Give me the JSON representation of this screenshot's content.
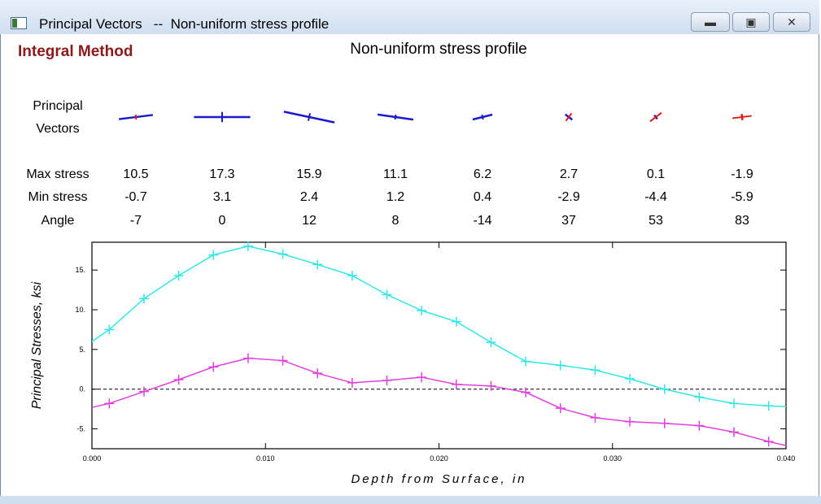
{
  "window": {
    "title": "Principal Vectors",
    "subtitle": "--  Non-uniform stress profile"
  },
  "header": {
    "method": "Integral Method",
    "chart_title": "Non-uniform stress profile"
  },
  "table": {
    "row_labels": {
      "vectors_line1": "Principal",
      "vectors_line2": "Vectors",
      "max": "Max stress",
      "min": "Min stress",
      "angle": "Angle"
    },
    "columns": [
      {
        "max": "10.5",
        "min": "-0.7",
        "angle": "-7"
      },
      {
        "max": "17.3",
        "min": "3.1",
        "angle": "0"
      },
      {
        "max": "15.9",
        "min": "2.4",
        "angle": "12"
      },
      {
        "max": "11.1",
        "min": "1.2",
        "angle": "8"
      },
      {
        "max": "6.2",
        "min": "0.4",
        "angle": "-14"
      },
      {
        "max": "2.7",
        "min": "-2.9",
        "angle": "37"
      },
      {
        "max": "0.1",
        "min": "-4.4",
        "angle": "53"
      },
      {
        "max": "-1.9",
        "min": "-5.9",
        "angle": "83"
      }
    ]
  },
  "colors": {
    "max_series": "#33e6e6",
    "min_series": "#e040e0",
    "vector_positive": "#1a1acc",
    "vector_negative": "#e01a1a",
    "method_label": "#8b1a1a"
  },
  "chart_data": {
    "type": "line",
    "xlabel": "Depth from Surface,  in",
    "ylabel": "Principal Stresses, ksi",
    "xlim": [
      0,
      0.04
    ],
    "ylim": [
      -7.5,
      18.5
    ],
    "xticks": [
      0,
      0.01,
      0.02,
      0.03,
      0.04
    ],
    "xtick_labels": [
      "0.000",
      "0.010",
      "0.020",
      "0.030",
      "0.040"
    ],
    "yticks": [
      -5,
      0,
      5,
      10,
      15
    ],
    "ytick_labels": [
      "-5.",
      "0.",
      "5.",
      "10.",
      "15."
    ],
    "zero_line": true,
    "series": [
      {
        "role": "max",
        "x": [
          0,
          0.001,
          0.003,
          0.005,
          0.007,
          0.009,
          0.011,
          0.013,
          0.015,
          0.017,
          0.019,
          0.021,
          0.023,
          0.025,
          0.027,
          0.029,
          0.031,
          0.033,
          0.035,
          0.037,
          0.039,
          0.04
        ],
        "y": [
          6.0,
          7.5,
          11.4,
          14.3,
          16.9,
          18.0,
          17.0,
          15.7,
          14.3,
          11.9,
          9.9,
          8.5,
          5.9,
          3.5,
          3.0,
          2.4,
          1.3,
          0.0,
          -1.0,
          -1.8,
          -2.1,
          -2.2
        ],
        "markers": [
          false,
          true,
          true,
          true,
          true,
          true,
          true,
          true,
          true,
          true,
          true,
          true,
          true,
          true,
          true,
          true,
          true,
          true,
          true,
          true,
          true,
          false
        ]
      },
      {
        "role": "min",
        "x": [
          0,
          0.001,
          0.003,
          0.005,
          0.007,
          0.009,
          0.011,
          0.013,
          0.015,
          0.017,
          0.019,
          0.021,
          0.023,
          0.025,
          0.027,
          0.029,
          0.031,
          0.033,
          0.035,
          0.037,
          0.039,
          0.04
        ],
        "y": [
          -2.3,
          -1.8,
          -0.3,
          1.2,
          2.8,
          3.9,
          3.6,
          2.0,
          0.8,
          1.1,
          1.5,
          0.6,
          0.4,
          -0.4,
          -2.4,
          -3.6,
          -4.1,
          -4.3,
          -4.6,
          -5.4,
          -6.6,
          -7.1
        ],
        "markers": [
          false,
          true,
          true,
          true,
          true,
          true,
          true,
          true,
          true,
          true,
          true,
          true,
          true,
          true,
          true,
          true,
          true,
          true,
          true,
          true,
          true,
          false
        ]
      }
    ]
  }
}
